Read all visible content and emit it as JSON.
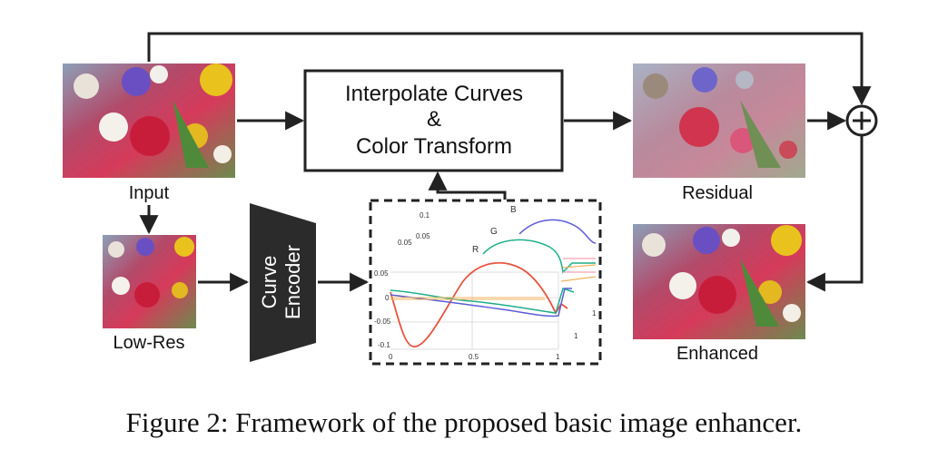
{
  "nodes": {
    "input": "Input",
    "low_res": "Low-Res",
    "encoder_line1": "Curve",
    "encoder_line2": "Encoder",
    "interp_line1": "Interpolate Curves",
    "interp_line2": "&",
    "interp_line3": "Color Transform",
    "residual": "Residual",
    "enhanced": "Enhanced",
    "plus_symbol": "+"
  },
  "plot": {
    "channel_labels": [
      "B",
      "G",
      "R"
    ],
    "y_ticks": [
      "0.1",
      "0.05",
      "0",
      "-0.05",
      "-0.1"
    ],
    "x_ticks": [
      "0",
      "0.5",
      "1"
    ],
    "back_ticks": [
      "0.1",
      "0.05",
      "0.05",
      "1",
      "1"
    ],
    "colors": {
      "R": "#e8553f",
      "G": "#1fae8a",
      "B": "#5a5cd6"
    }
  },
  "caption": "Figure 2: Framework of the proposed basic image enhancer.",
  "colors": {
    "stroke": "#222222",
    "encoder_fill": "#2b2b2b"
  }
}
